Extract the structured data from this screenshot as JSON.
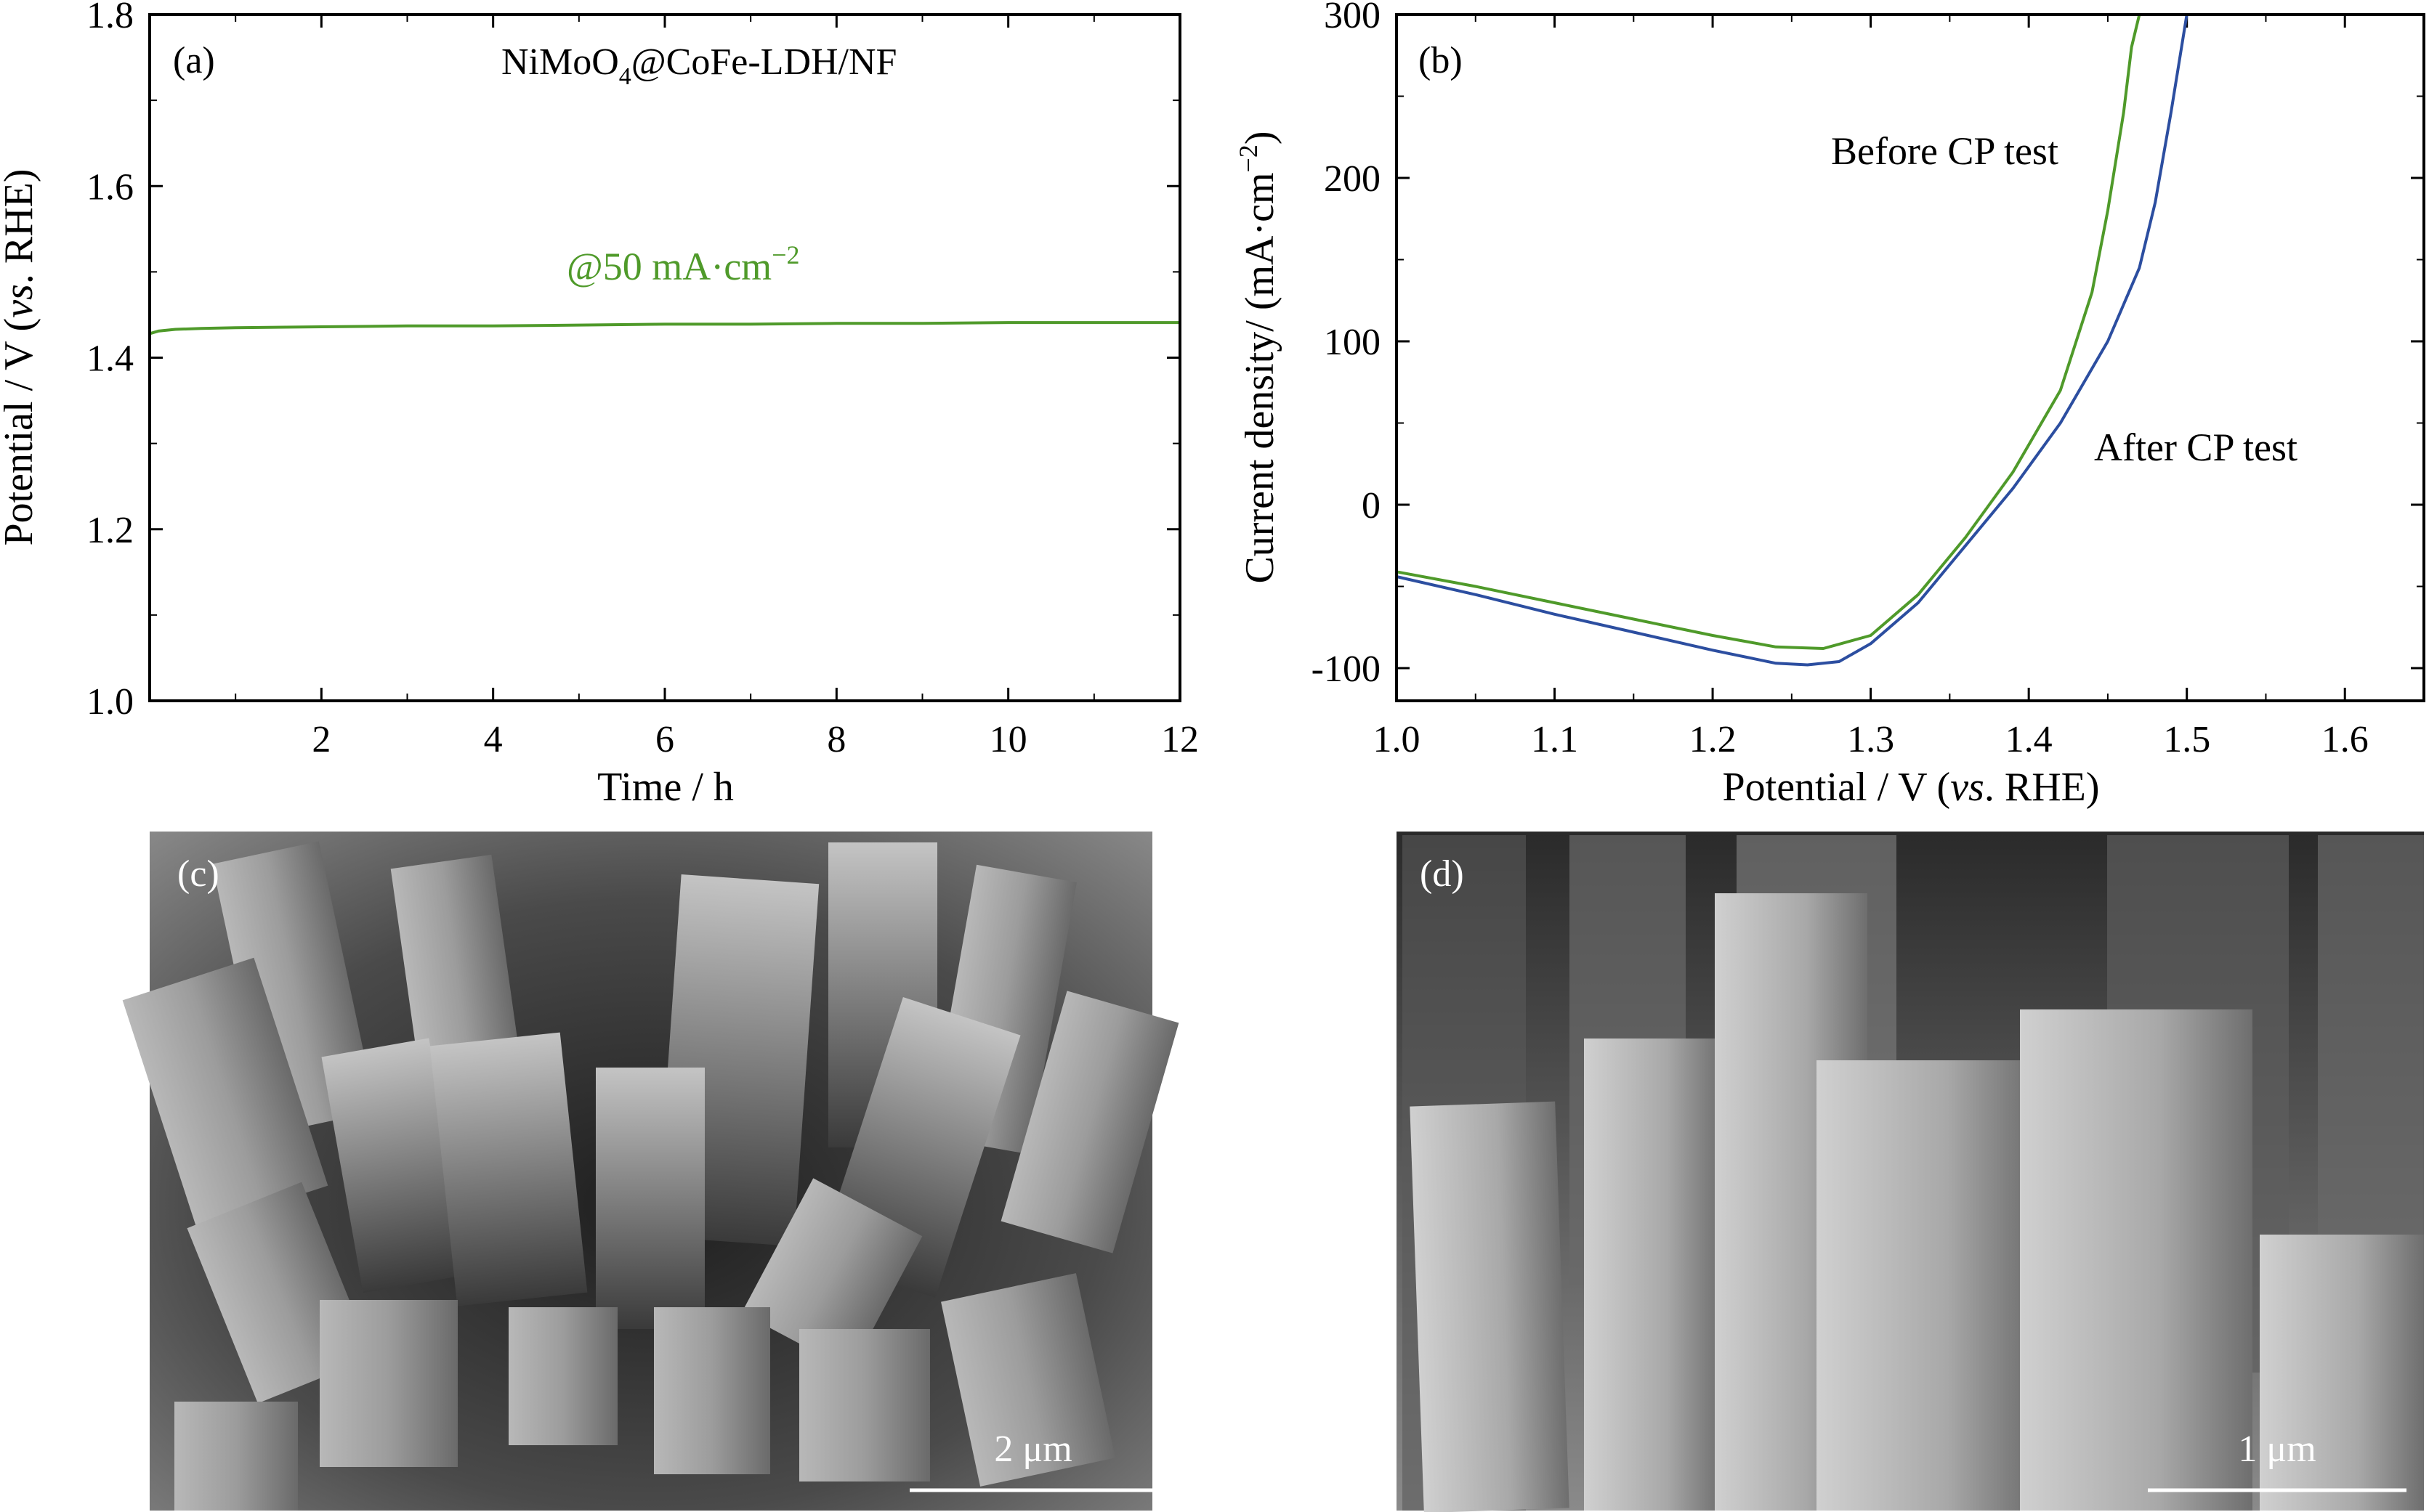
{
  "colors": {
    "green": "#4f9a2a",
    "blue": "#2c4ea0",
    "axis": "#000000"
  },
  "panels": {
    "a": {
      "tag": "(a)",
      "sample_prefix": "NiMoO",
      "sample_sub": "4",
      "sample_suffix": "@CoFe-LDH/NF",
      "annotation_prefix": "@50 mA·cm",
      "annotation_sup": "−2"
    },
    "b": {
      "tag": "(b)"
    },
    "c": {
      "tag": "(c)",
      "scale": "2 μm"
    },
    "d": {
      "tag": "(d)",
      "scale": "1 μm"
    }
  },
  "chart_data": [
    {
      "type": "line",
      "xlabel": "Time / h",
      "ylabel_prefix": "Potential / V (",
      "ylabel_italic": "vs",
      "ylabel_suffix": ". RHE)",
      "xlim": [
        0,
        12
      ],
      "ylim": [
        1.0,
        1.8
      ],
      "xticks": [
        2,
        4,
        6,
        8,
        10,
        12
      ],
      "yticks": [
        1.0,
        1.2,
        1.4,
        1.6,
        1.8
      ],
      "series": [
        {
          "x": [
            0,
            0.1,
            0.3,
            0.6,
            1,
            2,
            3,
            4,
            5,
            6,
            7,
            8,
            9,
            10,
            11,
            12
          ],
          "y": [
            1.428,
            1.431,
            1.433,
            1.434,
            1.435,
            1.436,
            1.437,
            1.437,
            1.438,
            1.439,
            1.439,
            1.44,
            1.44,
            1.441,
            1.441,
            1.441
          ]
        }
      ]
    },
    {
      "type": "line",
      "xlabel_prefix": "Potential / V (",
      "xlabel_italic": "vs",
      "xlabel_suffix": ". RHE)",
      "ylabel": "Current density/ (mA·cm",
      "ylabel_sup": "−2",
      "ylabel_end": ")",
      "xlim": [
        1.0,
        1.65
      ],
      "ylim": [
        -120,
        300
      ],
      "xticks": [
        1.0,
        1.1,
        1.2,
        1.3,
        1.4,
        1.5,
        1.6
      ],
      "yticks": [
        -100,
        0,
        100,
        200,
        300
      ],
      "series": [
        {
          "name": "Before CP test",
          "x": [
            1.0,
            1.05,
            1.1,
            1.15,
            1.2,
            1.24,
            1.27,
            1.3,
            1.33,
            1.36,
            1.39,
            1.42,
            1.44,
            1.45,
            1.46,
            1.465,
            1.47
          ],
          "y": [
            -41,
            -50,
            -60,
            -70,
            -80,
            -87,
            -88,
            -80,
            -55,
            -20,
            20,
            70,
            130,
            180,
            240,
            280,
            300
          ]
        },
        {
          "name": "After CP test",
          "x": [
            1.0,
            1.05,
            1.1,
            1.15,
            1.2,
            1.24,
            1.26,
            1.28,
            1.3,
            1.33,
            1.36,
            1.39,
            1.42,
            1.45,
            1.47,
            1.48,
            1.49,
            1.5
          ],
          "y": [
            -44,
            -55,
            -67,
            -78,
            -89,
            -97,
            -98,
            -96,
            -85,
            -60,
            -25,
            10,
            50,
            100,
            145,
            185,
            240,
            300
          ]
        }
      ]
    }
  ]
}
